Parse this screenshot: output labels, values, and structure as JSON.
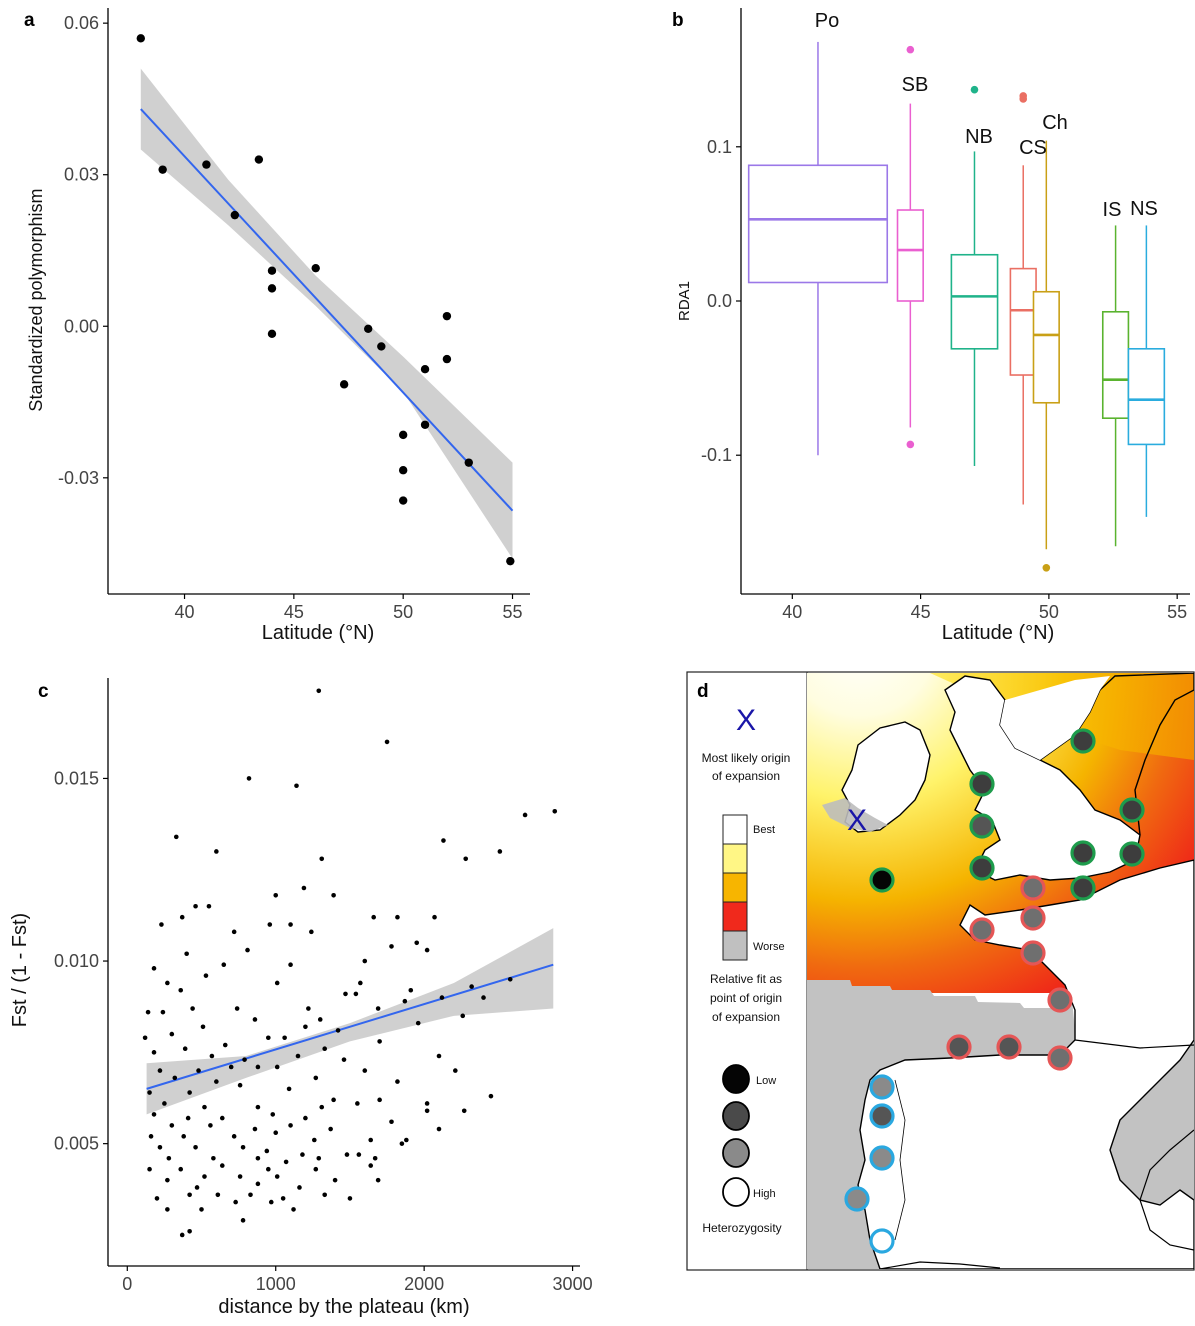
{
  "panels": {
    "a": {
      "label": "a"
    },
    "b": {
      "label": "b"
    },
    "c": {
      "label": "c"
    },
    "d": {
      "label": "d"
    }
  },
  "chart_data": [
    {
      "panel": "a",
      "type": "scatter",
      "xlabel": "Latitude (°N)",
      "ylabel": "Standardized polymorphism",
      "xlim": [
        36.5,
        55.8
      ],
      "ylim": [
        -0.053,
        0.063
      ],
      "xticks": [
        40,
        45,
        50,
        55
      ],
      "yticks": [
        -0.03,
        0.0,
        0.03,
        0.06
      ],
      "ytick_labels": [
        "-0.03",
        "0.00",
        "0.03",
        "0.06"
      ],
      "grid": false,
      "points": [
        [
          38,
          0.057
        ],
        [
          39,
          0.031
        ],
        [
          41,
          0.032
        ],
        [
          42.3,
          0.022
        ],
        [
          43.4,
          0.033
        ],
        [
          44,
          0.011
        ],
        [
          44,
          0.0075
        ],
        [
          44,
          -0.0015
        ],
        [
          46,
          0.0115
        ],
        [
          47.3,
          -0.0115
        ],
        [
          48.4,
          -0.0005
        ],
        [
          49,
          -0.004
        ],
        [
          50,
          -0.0215
        ],
        [
          50,
          -0.0285
        ],
        [
          50,
          -0.0345
        ],
        [
          51,
          -0.0085
        ],
        [
          51,
          -0.0195
        ],
        [
          52,
          0.002
        ],
        [
          52,
          -0.0065
        ],
        [
          53,
          -0.027
        ],
        [
          54.9,
          -0.0465
        ]
      ],
      "fit": {
        "x": [
          38,
          55
        ],
        "y": [
          0.043,
          -0.0365
        ],
        "band": [
          [
            38,
            0.035,
            0.051
          ],
          [
            42,
            0.02,
            0.029
          ],
          [
            46,
            0.004,
            0.01
          ],
          [
            50,
            -0.013,
            -0.006
          ],
          [
            55,
            -0.046,
            -0.027
          ]
        ]
      }
    },
    {
      "panel": "b",
      "type": "box",
      "xlabel": "Latitude (°N)",
      "ylabel": "RDA1",
      "xlim": [
        38,
        55.5
      ],
      "ylim": [
        -0.19,
        0.19
      ],
      "xticks": [
        40,
        45,
        50,
        55
      ],
      "yticks": [
        -0.1,
        0.0,
        0.1
      ],
      "ytick_labels": [
        "-0.1",
        "0.0",
        "0.1"
      ],
      "grid": false,
      "boxes": [
        {
          "name": "Po",
          "x": 41,
          "width": 5.4,
          "q1": 0.012,
          "median": 0.053,
          "q3": 0.088,
          "wlow": -0.1,
          "whigh": 0.168,
          "outliers": [],
          "color": "#9b78e8"
        },
        {
          "name": "SB",
          "x": 44.6,
          "width": 1.0,
          "q1": 0.0,
          "median": 0.033,
          "q3": 0.059,
          "wlow": -0.082,
          "whigh": 0.128,
          "outliers": [
            0.163,
            -0.093
          ],
          "color": "#ea5fd0"
        },
        {
          "name": "NB",
          "x": 47.1,
          "width": 1.8,
          "q1": -0.031,
          "median": 0.003,
          "q3": 0.03,
          "wlow": -0.107,
          "whigh": 0.097,
          "outliers": [
            0.137
          ],
          "color": "#1fb38a"
        },
        {
          "name": "CS",
          "x": 49,
          "width": 1.0,
          "q1": -0.048,
          "median": -0.006,
          "q3": 0.021,
          "wlow": -0.132,
          "whigh": 0.088,
          "outliers": [
            0.133,
            0.131
          ],
          "color": "#ea6f63"
        },
        {
          "name": "Ch",
          "x": 49.9,
          "width": 1.0,
          "q1": -0.066,
          "median": -0.022,
          "q3": 0.006,
          "wlow": -0.161,
          "whigh": 0.104,
          "outliers": [
            -0.173
          ],
          "color": "#c9a016"
        },
        {
          "name": "IS",
          "x": 52.6,
          "width": 1.0,
          "q1": -0.076,
          "median": -0.051,
          "q3": -0.007,
          "wlow": -0.159,
          "whigh": 0.049,
          "outliers": [],
          "color": "#5ab32f"
        },
        {
          "name": "NS",
          "x": 53.8,
          "width": 1.4,
          "q1": -0.093,
          "median": -0.064,
          "q3": -0.031,
          "wlow": -0.14,
          "whigh": 0.049,
          "outliers": [],
          "color": "#2aacde"
        }
      ]
    },
    {
      "panel": "c",
      "type": "scatter",
      "xlabel": "distance by the plateau (km)",
      "ylabel": "Fst / (1 - Fst)",
      "xlim": [
        -130,
        3050
      ],
      "ylim": [
        0.00165,
        0.01775
      ],
      "xticks": [
        0,
        1000,
        2000,
        3000
      ],
      "yticks": [
        0.005,
        0.01,
        0.015
      ],
      "ytick_labels": [
        "0.005",
        "0.010",
        "0.015"
      ],
      "grid": false,
      "points": [
        [
          1290,
          0.0174
        ],
        [
          1750,
          0.016
        ],
        [
          820,
          0.015
        ],
        [
          1140,
          0.0148
        ],
        [
          2880,
          0.0141
        ],
        [
          2680,
          0.014
        ],
        [
          330,
          0.0134
        ],
        [
          2130,
          0.0133
        ],
        [
          600,
          0.013
        ],
        [
          2510,
          0.013
        ],
        [
          1310,
          0.0128
        ],
        [
          2280,
          0.0128
        ],
        [
          1000,
          0.0118
        ],
        [
          1390,
          0.0118
        ],
        [
          1190,
          0.012
        ],
        [
          460,
          0.0115
        ],
        [
          550,
          0.0115
        ],
        [
          370,
          0.0112
        ],
        [
          1100,
          0.011
        ],
        [
          1660,
          0.0112
        ],
        [
          230,
          0.011
        ],
        [
          960,
          0.011
        ],
        [
          1820,
          0.0112
        ],
        [
          2070,
          0.0112
        ],
        [
          720,
          0.0108
        ],
        [
          1240,
          0.0108
        ],
        [
          1600,
          0.01
        ],
        [
          810,
          0.0103
        ],
        [
          1780,
          0.0104
        ],
        [
          1950,
          0.0105
        ],
        [
          2020,
          0.0103
        ],
        [
          400,
          0.0102
        ],
        [
          1100,
          0.0099
        ],
        [
          650,
          0.0099
        ],
        [
          180,
          0.0098
        ],
        [
          530,
          0.0096
        ],
        [
          270,
          0.0094
        ],
        [
          1010,
          0.0094
        ],
        [
          1570,
          0.0094
        ],
        [
          1910,
          0.0092
        ],
        [
          360,
          0.0092
        ],
        [
          1470,
          0.0091
        ],
        [
          1540,
          0.0091
        ],
        [
          1870,
          0.0089
        ],
        [
          2120,
          0.009
        ],
        [
          2400,
          0.009
        ],
        [
          2580,
          0.0095
        ],
        [
          2320,
          0.0093
        ],
        [
          140,
          0.0086
        ],
        [
          240,
          0.0086
        ],
        [
          440,
          0.0087
        ],
        [
          740,
          0.0087
        ],
        [
          1220,
          0.0087
        ],
        [
          1690,
          0.0087
        ],
        [
          1300,
          0.0084
        ],
        [
          860,
          0.0084
        ],
        [
          1960,
          0.0083
        ],
        [
          2260,
          0.0085
        ],
        [
          1200,
          0.0082
        ],
        [
          510,
          0.0082
        ],
        [
          300,
          0.008
        ],
        [
          1420,
          0.0081
        ],
        [
          950,
          0.0079
        ],
        [
          1060,
          0.0079
        ],
        [
          120,
          0.0079
        ],
        [
          660,
          0.0077
        ],
        [
          1700,
          0.0078
        ],
        [
          180,
          0.0075
        ],
        [
          390,
          0.0076
        ],
        [
          570,
          0.0074
        ],
        [
          790,
          0.0073
        ],
        [
          1150,
          0.0074
        ],
        [
          1330,
          0.0076
        ],
        [
          1460,
          0.0073
        ],
        [
          2100,
          0.0074
        ],
        [
          700,
          0.0071
        ],
        [
          880,
          0.0071
        ],
        [
          1010,
          0.0071
        ],
        [
          220,
          0.007
        ],
        [
          480,
          0.007
        ],
        [
          1270,
          0.0068
        ],
        [
          1600,
          0.007
        ],
        [
          2210,
          0.007
        ],
        [
          320,
          0.0068
        ],
        [
          600,
          0.0067
        ],
        [
          1820,
          0.0067
        ],
        [
          150,
          0.0064
        ],
        [
          420,
          0.0064
        ],
        [
          760,
          0.0066
        ],
        [
          1090,
          0.0065
        ],
        [
          1390,
          0.0062
        ],
        [
          1700,
          0.0062
        ],
        [
          2450,
          0.0063
        ],
        [
          250,
          0.0061
        ],
        [
          520,
          0.006
        ],
        [
          880,
          0.006
        ],
        [
          1310,
          0.006
        ],
        [
          1550,
          0.0061
        ],
        [
          2020,
          0.0061
        ],
        [
          180,
          0.0058
        ],
        [
          410,
          0.0057
        ],
        [
          640,
          0.0057
        ],
        [
          980,
          0.0058
        ],
        [
          1200,
          0.0057
        ],
        [
          1780,
          0.0056
        ],
        [
          2270,
          0.0059
        ],
        [
          300,
          0.0055
        ],
        [
          560,
          0.0055
        ],
        [
          860,
          0.0054
        ],
        [
          1100,
          0.0055
        ],
        [
          1370,
          0.0054
        ],
        [
          2100,
          0.0054
        ],
        [
          160,
          0.0052
        ],
        [
          380,
          0.0052
        ],
        [
          720,
          0.0052
        ],
        [
          1000,
          0.0053
        ],
        [
          1260,
          0.0051
        ],
        [
          1640,
          0.0051
        ],
        [
          1880,
          0.0051
        ],
        [
          220,
          0.0049
        ],
        [
          460,
          0.0049
        ],
        [
          780,
          0.0049
        ],
        [
          940,
          0.0048
        ],
        [
          1180,
          0.0047
        ],
        [
          1480,
          0.0047
        ],
        [
          280,
          0.0046
        ],
        [
          580,
          0.0046
        ],
        [
          880,
          0.0046
        ],
        [
          1070,
          0.0045
        ],
        [
          1640,
          0.0044
        ],
        [
          150,
          0.0043
        ],
        [
          360,
          0.0043
        ],
        [
          640,
          0.0044
        ],
        [
          950,
          0.0043
        ],
        [
          1270,
          0.0043
        ],
        [
          520,
          0.0041
        ],
        [
          760,
          0.0041
        ],
        [
          1010,
          0.0041
        ],
        [
          1400,
          0.004
        ],
        [
          270,
          0.004
        ],
        [
          1690,
          0.004
        ],
        [
          470,
          0.0038
        ],
        [
          880,
          0.0039
        ],
        [
          1160,
          0.0038
        ],
        [
          610,
          0.0036
        ],
        [
          830,
          0.0036
        ],
        [
          1330,
          0.0036
        ],
        [
          200,
          0.0035
        ],
        [
          420,
          0.0036
        ],
        [
          1050,
          0.0035
        ],
        [
          1500,
          0.0035
        ],
        [
          730,
          0.0034
        ],
        [
          970,
          0.0034
        ],
        [
          270,
          0.0032
        ],
        [
          500,
          0.0032
        ],
        [
          1120,
          0.0032
        ],
        [
          780,
          0.0029
        ],
        [
          420,
          0.0026
        ],
        [
          370,
          0.0025
        ],
        [
          1850,
          0.005
        ],
        [
          1560,
          0.0047
        ],
        [
          1290,
          0.0046
        ],
        [
          1670,
          0.0046
        ],
        [
          2020,
          0.0059
        ]
      ],
      "fit": {
        "x": [
          130,
          2870
        ],
        "y": [
          0.0065,
          0.0099
        ],
        "band": [
          [
            130,
            0.0058,
            0.0072
          ],
          [
            800,
            0.0068,
            0.0074
          ],
          [
            1500,
            0.0078,
            0.0083
          ],
          [
            2200,
            0.0085,
            0.0094
          ],
          [
            2870,
            0.0087,
            0.0109
          ]
        ]
      }
    }
  ],
  "box_labels": [
    "Po",
    "SB",
    "NB",
    "CS",
    "Ch",
    "IS",
    "NS"
  ],
  "map": {
    "legend": {
      "origin_marker": "X",
      "origin_label_1": "Most likely origin",
      "origin_label_2": "of expansion",
      "fit_levels": [
        "Best",
        "Worse"
      ],
      "fit_colors": [
        "#ffffff",
        "#fff685",
        "#f7b500",
        "#f0291c",
        "#c0c0c0"
      ],
      "fit_title_1": "Relative fit as",
      "fit_title_2": "point of origin",
      "fit_title_3": "of expansion",
      "het_levels": [
        "Low",
        "High"
      ],
      "het_colors": [
        "#050505",
        "#4a4a4a",
        "#8a8a8a",
        "#ffffff"
      ],
      "het_title": "Heterozygosity"
    },
    "sea_color": "#c2c2c2",
    "land_color": "#ffffff",
    "ring_colors": {
      "north": "#1e9c4c",
      "mid": "#e55656",
      "south": "#2aa8e0"
    },
    "sites": [
      {
        "group": "north",
        "het": "#3d3d3d"
      },
      {
        "group": "north",
        "het": "#3d3d3d"
      },
      {
        "group": "north",
        "het": "#555555"
      },
      {
        "group": "north",
        "het": "#3d3d3d"
      },
      {
        "group": "north",
        "het": "#3d3d3d"
      },
      {
        "group": "north",
        "het": "#3d3d3d"
      },
      {
        "group": "north",
        "het": "#3d3d3d"
      },
      {
        "group": "north",
        "het": "#3d3d3d"
      },
      {
        "group": "north",
        "het": "#050505"
      },
      {
        "group": "mid",
        "het": "#6f6f6f"
      },
      {
        "group": "mid",
        "het": "#6f6f6f"
      },
      {
        "group": "mid",
        "het": "#6f6f6f"
      },
      {
        "group": "mid",
        "het": "#6f6f6f"
      },
      {
        "group": "mid",
        "het": "#6f6f6f"
      },
      {
        "group": "mid",
        "het": "#555555"
      },
      {
        "group": "mid",
        "het": "#555555"
      },
      {
        "group": "mid",
        "het": "#6f6f6f"
      },
      {
        "group": "south",
        "het": "#8a8a8a"
      },
      {
        "group": "south",
        "het": "#555555"
      },
      {
        "group": "south",
        "het": "#8a8a8a"
      },
      {
        "group": "south",
        "het": "#8a8a8a"
      },
      {
        "group": "south",
        "het": "#ffffff"
      }
    ]
  }
}
